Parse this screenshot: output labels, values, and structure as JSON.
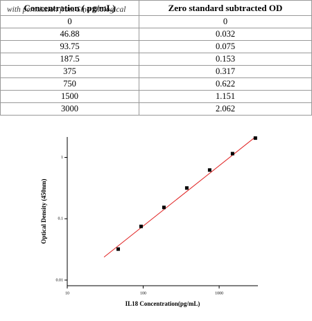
{
  "table": {
    "header": [
      "Concentration ( pg/mL)",
      "Zero standard subtracted OD"
    ],
    "rows": [
      [
        "0",
        "0"
      ],
      [
        "46.88",
        "0.032"
      ],
      [
        "93.75",
        "0.075"
      ],
      [
        "187.5",
        "0.153"
      ],
      [
        "375",
        "0.317"
      ],
      [
        "750",
        "0.622"
      ],
      [
        "1500",
        "1.151"
      ],
      [
        "3000",
        "2.062"
      ]
    ]
  },
  "note": "with permission from Sino Biological",
  "chart_data": {
    "type": "scatter",
    "x_label": "IL18  Concentration(pg/mL)",
    "y_label": "Optical Density (450nm)",
    "x": [
      46.88,
      93.75,
      187.5,
      375,
      750,
      1500,
      3000
    ],
    "values": [
      0.032,
      0.075,
      0.153,
      0.317,
      0.622,
      1.151,
      2.062
    ],
    "color": "#000000",
    "xlog": true,
    "ylog": true,
    "xlim": [
      10,
      3240
    ],
    "ylim": [
      0.0081,
      2.15
    ],
    "xticks": [
      10,
      100,
      1000
    ],
    "yticks": [
      0.01,
      0.1,
      1
    ],
    "fit_line": {
      "x": [
        30.5,
        2985
      ],
      "values": [
        0.0237,
        2.14
      ],
      "color": "#e02020"
    }
  }
}
